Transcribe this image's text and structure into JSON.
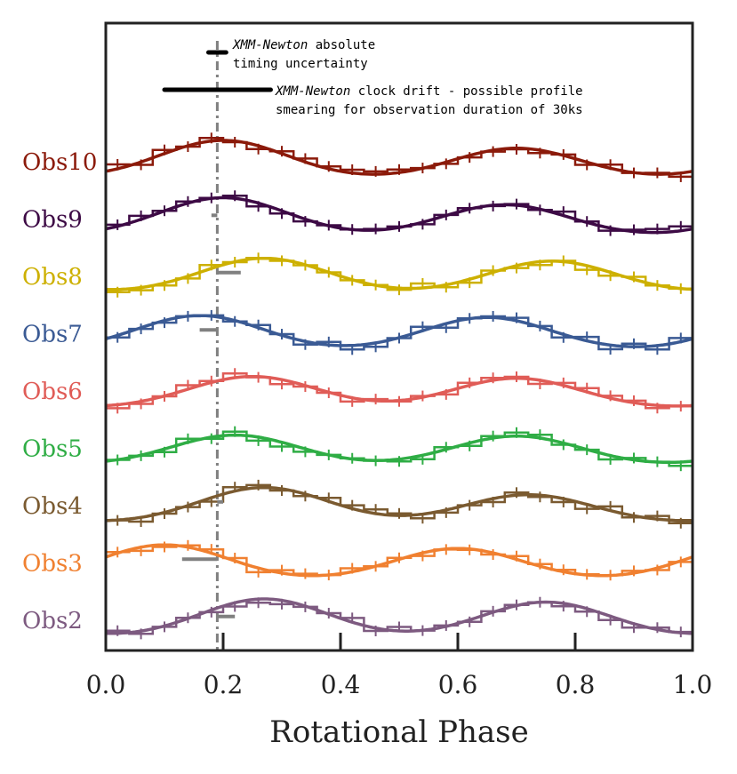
{
  "chart_data": {
    "type": "line",
    "title": "",
    "xlabel": "Rotational Phase",
    "ylabel": "",
    "xlim": [
      0.0,
      1.0
    ],
    "x_ticks": [
      {
        "value": 0.0,
        "label": "0.0"
      },
      {
        "value": 0.2,
        "label": "0.2"
      },
      {
        "value": 0.4,
        "label": "0.4"
      },
      {
        "value": 0.6,
        "label": "0.6"
      },
      {
        "value": 0.8,
        "label": "0.8"
      },
      {
        "value": 1.0,
        "label": "1.0"
      }
    ],
    "grid": false,
    "reference_line_phase": 0.19,
    "annotations": {
      "timing_uncertainty": {
        "italic": "XMM-Newton",
        "line1_rest": " absolute",
        "line2": "timing uncertainty",
        "width_phase": 0.03
      },
      "clock_drift": {
        "italic": "XMM-Newton",
        "line1_rest": " clock drift - possible profile",
        "line2": "smearing for observation duration of 30ks",
        "width_phase": 0.18
      }
    },
    "series": [
      {
        "name": "Obs10",
        "color": "#8b1a0a",
        "offset": 9,
        "amp": 0.6,
        "peak1": 0.2,
        "peak2": 0.7,
        "weight1": 1.0,
        "weight2": 0.8,
        "drift_offset": 0.0
      },
      {
        "name": "Obs9",
        "color": "#3d0a45",
        "offset": 8,
        "amp": 0.6,
        "peak1": 0.2,
        "peak2": 0.68,
        "weight1": 1.0,
        "weight2": 0.82,
        "drift_offset": -0.01
      },
      {
        "name": "Obs8",
        "color": "#cdb000",
        "offset": 7,
        "amp": 0.55,
        "peak1": 0.27,
        "peak2": 0.76,
        "weight1": 1.0,
        "weight2": 0.92,
        "drift_offset": 0.04
      },
      {
        "name": "Obs7",
        "color": "#3a5a94",
        "offset": 6,
        "amp": 0.55,
        "peak1": 0.16,
        "peak2": 0.65,
        "weight1": 1.0,
        "weight2": 0.95,
        "drift_offset": -0.03
      },
      {
        "name": "Obs6",
        "color": "#e05c57",
        "offset": 5,
        "amp": 0.55,
        "peak1": 0.25,
        "peak2": 0.7,
        "weight1": 0.9,
        "weight2": 0.85,
        "drift_offset": 0.0
      },
      {
        "name": "Obs5",
        "color": "#2fad45",
        "offset": 4,
        "amp": 0.5,
        "peak1": 0.22,
        "peak2": 0.7,
        "weight1": 0.95,
        "weight2": 0.92,
        "drift_offset": 0.0
      },
      {
        "name": "Obs4",
        "color": "#7a5a30",
        "offset": 3,
        "amp": 0.55,
        "peak1": 0.27,
        "peak2": 0.72,
        "weight1": 1.0,
        "weight2": 0.8,
        "drift_offset": 0.01
      },
      {
        "name": "Obs3",
        "color": "#f08030",
        "offset": 2,
        "amp": 0.55,
        "peak1": 0.1,
        "peak2": 0.6,
        "weight1": 1.0,
        "weight2": 0.9,
        "drift_offset": -0.06
      },
      {
        "name": "Obs2",
        "color": "#7d5a80",
        "offset": 1,
        "amp": 0.6,
        "peak1": 0.27,
        "peak2": 0.75,
        "weight1": 1.0,
        "weight2": 0.92,
        "drift_offset": 0.03
      }
    ]
  }
}
